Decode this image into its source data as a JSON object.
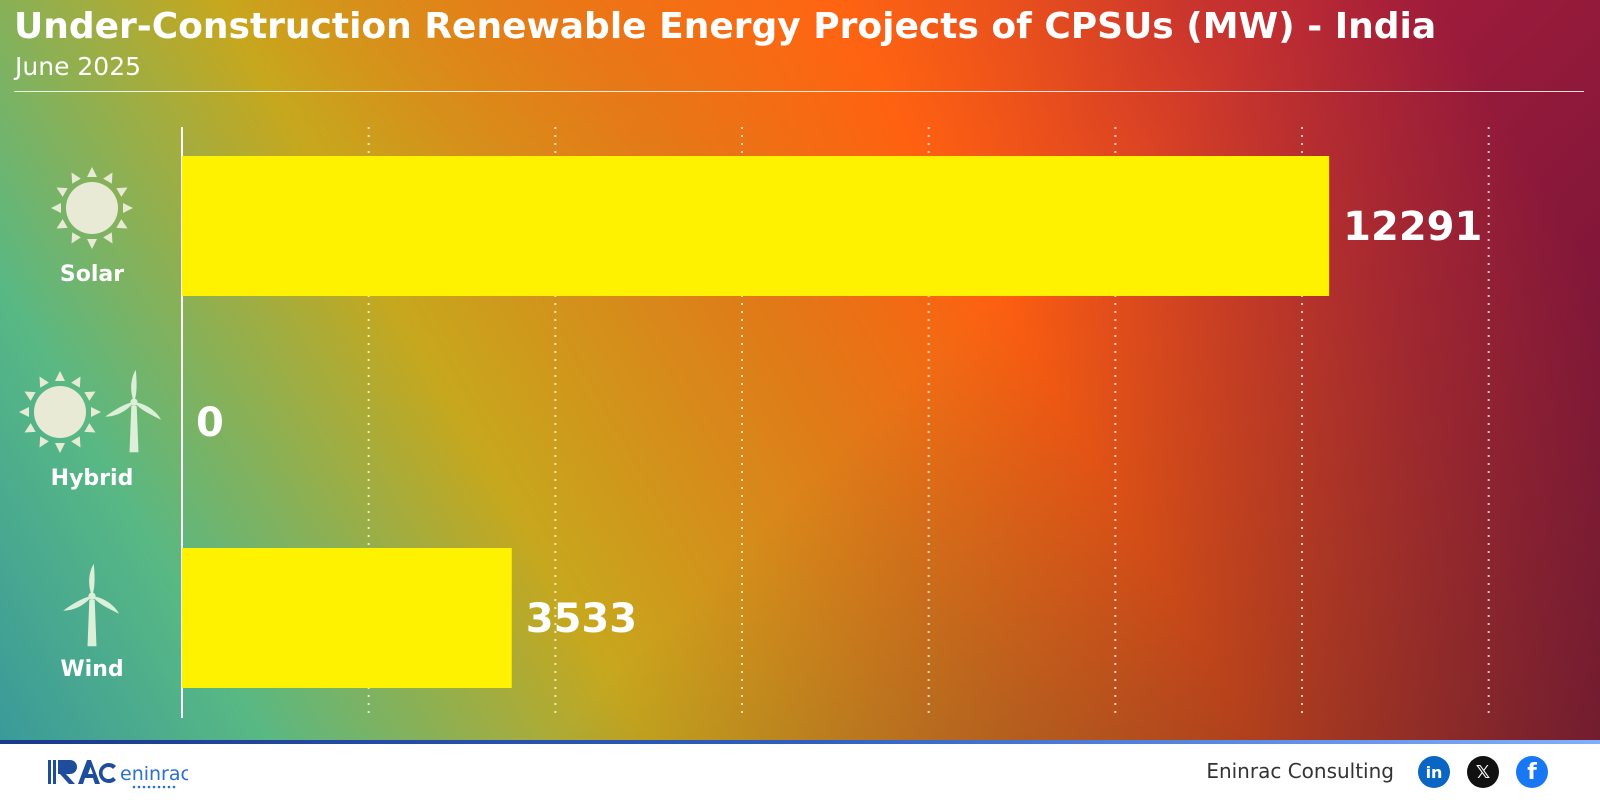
{
  "title": "Under-Construction Renewable Energy Projects of CPSUs (MW) - India",
  "subtitle": "June 2025",
  "chart_data": {
    "type": "bar",
    "orientation": "horizontal",
    "title": "Under-Construction Renewable Energy Projects of CPSUs (MW) - India",
    "subtitle": "June 2025",
    "categories": [
      "Solar",
      "Hybrid",
      "Wind"
    ],
    "values": [
      12291,
      0,
      3533
    ],
    "icons": [
      "sun-icon",
      "sun-and-wind-turbine-icon",
      "wind-turbine-icon"
    ],
    "xlim": [
      0,
      15000
    ],
    "grid": true,
    "grid_style": "dotted-vertical",
    "bar_color": "#fff200",
    "label_color": "#ffffff"
  },
  "footer": {
    "logo_text": "eninrac",
    "brand_name": "Eninrac Consulting",
    "social_icons": [
      "linkedin-icon",
      "x-icon",
      "facebook-icon"
    ]
  },
  "colors": {
    "linkedin": "#0a66c2",
    "x": "#111111",
    "facebook": "#1877f2",
    "footer_strip": "#2e5fc0"
  }
}
